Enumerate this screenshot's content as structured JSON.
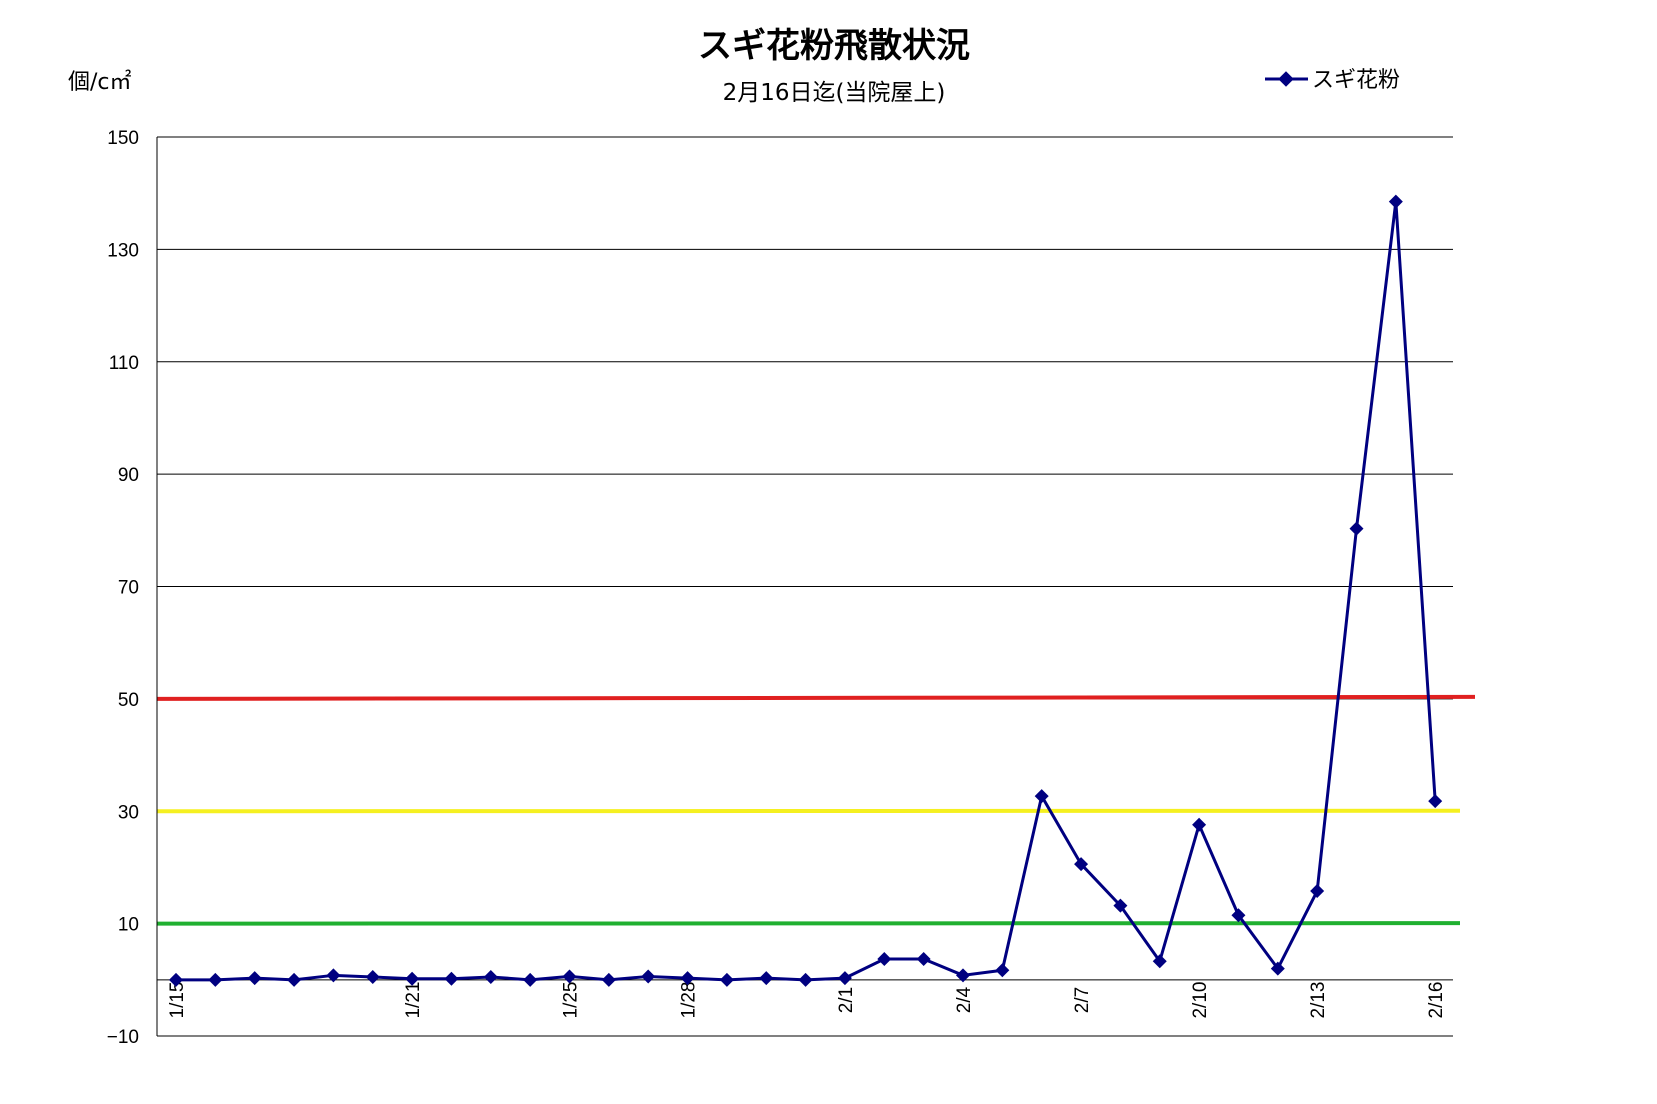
{
  "chart_data": {
    "type": "line",
    "title": "スギ花粉飛散状況",
    "subtitle": "2月16日迄(当院屋上)",
    "ylabel": "個/c㎡",
    "xlabel": "",
    "ylim": [
      -10,
      150
    ],
    "yticks": [
      -10,
      10,
      30,
      50,
      70,
      90,
      110,
      130,
      150
    ],
    "grid": true,
    "legend": "top-right",
    "x": [
      "1/15",
      "1/16",
      "1/17",
      "1/18",
      "1/19",
      "1/20",
      "1/21",
      "1/22",
      "1/23",
      "1/24",
      "1/25",
      "1/26",
      "1/27",
      "1/28",
      "1/29",
      "1/30",
      "1/31",
      "2/1",
      "2/2",
      "2/3",
      "2/4",
      "2/5",
      "2/6",
      "2/7",
      "2/8",
      "2/9",
      "2/10",
      "2/11",
      "2/12",
      "2/13",
      "2/14",
      "2/15",
      "2/16"
    ],
    "x_tick_labels_shown": [
      "1/15",
      "1/21",
      "1/25",
      "1/28",
      "2/1",
      "2/4",
      "2/7",
      "2/10",
      "2/13",
      "2/16"
    ],
    "series": [
      {
        "name": "スギ花粉",
        "color": "#000080",
        "values": [
          0,
          0,
          0.3,
          0,
          0.8,
          0.5,
          0.2,
          0.2,
          0.5,
          0,
          0.6,
          0,
          0.6,
          0.3,
          0,
          0.3,
          0,
          0.3,
          3.7,
          3.7,
          0.8,
          1.7,
          32.7,
          20.6,
          13.2,
          3.3,
          27.6,
          11.5,
          2,
          15.8,
          80.3,
          138.5,
          31.8
        ]
      }
    ],
    "reference_lines": [
      {
        "value": 50,
        "color": "#e02020"
      },
      {
        "value": 30,
        "color": "#f5f020"
      },
      {
        "value": 10,
        "color": "#20b030"
      }
    ]
  }
}
